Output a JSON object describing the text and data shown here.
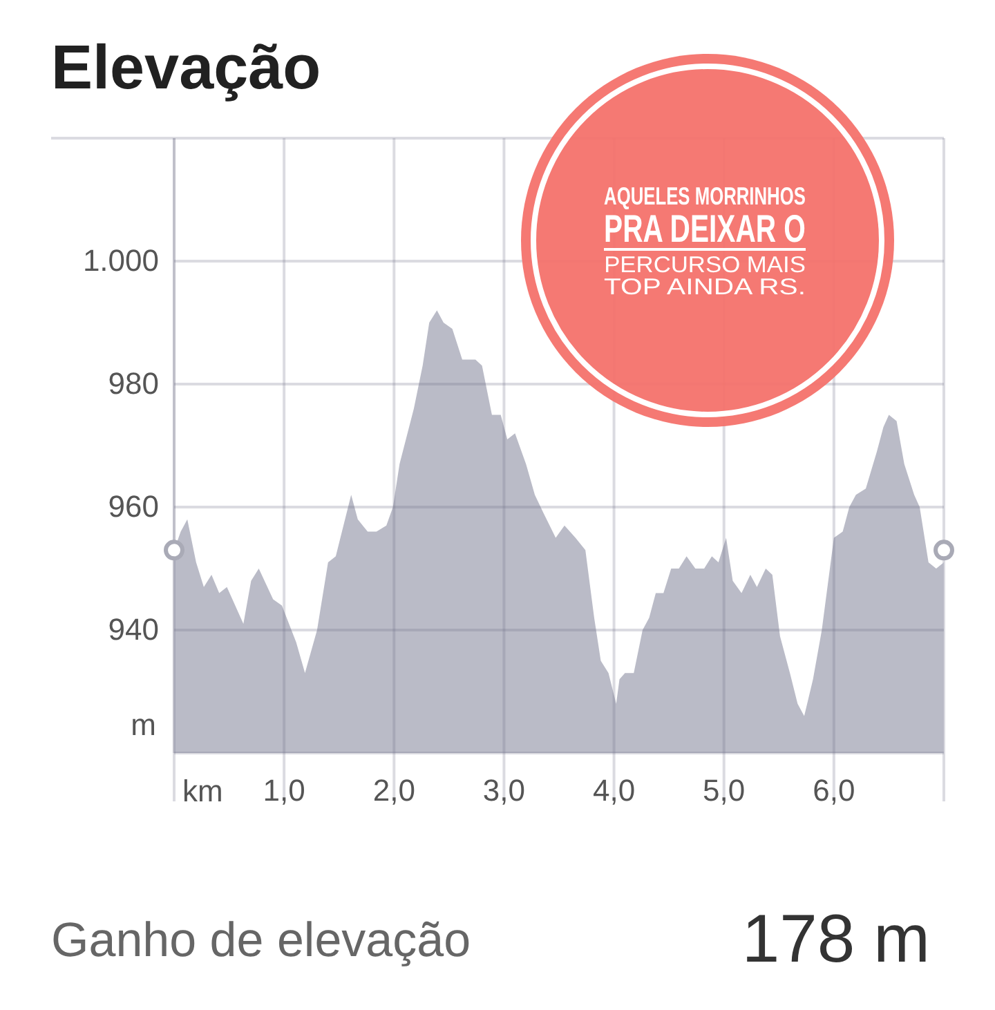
{
  "chart_data": {
    "type": "area",
    "title": "Elevação",
    "xlabel": "km",
    "ylabel": "m",
    "x": [
      0,
      0.06,
      0.12,
      0.2,
      0.27,
      0.34,
      0.41,
      0.48,
      0.63,
      0.7,
      0.77,
      0.9,
      0.98,
      1.11,
      1.19,
      1.3,
      1.4,
      1.47,
      1.61,
      1.67,
      1.76,
      1.84,
      1.93,
      1.99,
      2.05,
      2.18,
      2.26,
      2.32,
      2.39,
      2.45,
      2.53,
      2.62,
      2.74,
      2.8,
      2.89,
      2.97,
      3.03,
      3.1,
      3.2,
      3.28,
      3.36,
      3.47,
      3.55,
      3.65,
      3.74,
      3.82,
      3.88,
      3.95,
      4.02,
      4.05,
      4.1,
      4.18,
      4.26,
      4.32,
      4.38,
      4.45,
      4.52,
      4.59,
      4.66,
      4.74,
      4.82,
      4.89,
      4.95,
      5.02,
      5.08,
      5.16,
      5.24,
      5.3,
      5.38,
      5.44,
      5.51,
      5.6,
      5.67,
      5.73,
      5.81,
      5.89,
      6.0,
      6.08,
      6.14,
      6.2,
      6.29,
      6.39,
      6.45,
      6.5,
      6.57,
      6.64,
      6.73,
      6.78,
      6.86,
      6.93,
      7.0
    ],
    "series": [
      {
        "color": "#babbc7",
        "values": [
          953,
          956,
          958,
          951,
          947,
          949,
          946,
          947,
          941,
          948,
          950,
          945,
          944,
          938,
          933,
          940,
          951,
          952,
          962,
          958,
          956,
          956,
          957,
          960,
          967,
          976,
          983,
          990,
          992,
          990,
          989,
          984,
          984,
          983,
          975,
          975,
          971,
          972,
          967,
          962,
          959,
          955,
          957,
          955,
          953,
          942,
          935,
          933,
          928,
          932,
          933,
          933,
          940,
          942,
          946,
          946,
          950,
          950,
          952,
          950,
          950,
          952,
          951,
          955,
          948,
          946,
          949,
          947,
          950,
          949,
          939,
          933,
          928,
          926,
          932,
          940,
          955,
          956,
          960,
          962,
          963,
          969,
          973,
          975,
          974,
          967,
          962,
          960,
          951,
          950,
          951
        ]
      },
      {
        "type": "scatter",
        "marker": "circle",
        "color": "#a9aab6",
        "x": [
          0,
          7.0
        ],
        "values": [
          953,
          953
        ]
      }
    ],
    "xlim": [
      0,
      7.0
    ],
    "ylim": [
      920,
      1020
    ],
    "xticks": [
      {
        "value": 1,
        "label": "1,0"
      },
      {
        "value": 2,
        "label": "2,0"
      },
      {
        "value": 3,
        "label": "3,0"
      },
      {
        "value": 4,
        "label": "4,0"
      },
      {
        "value": 5,
        "label": "5,0"
      },
      {
        "value": 6,
        "label": "6,0"
      }
    ],
    "yticks": [
      940,
      960,
      980,
      {
        "value": 1000,
        "label": "1.000"
      }
    ],
    "grid": true,
    "annotations": [
      "AQUELES MORRINHOS",
      "PRA DEIXAR O",
      "PERCURSO MAIS",
      "TOP AINDA RS.",
      "Ganho de elevação",
      "178 m"
    ]
  }
}
